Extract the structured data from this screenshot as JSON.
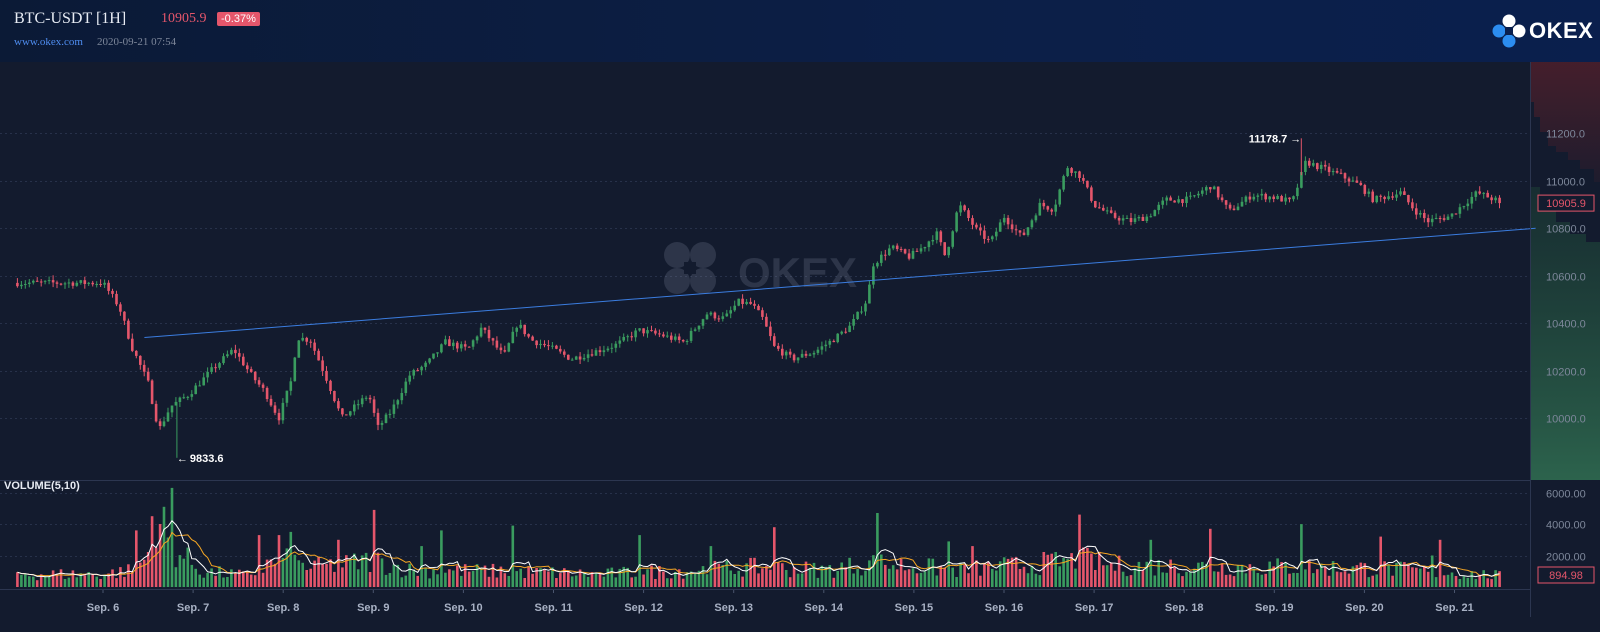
{
  "header": {
    "title": "BTC-USDT  [1H]",
    "last_price": "10905.9",
    "change": "-0.37%",
    "site": "www.okex.com",
    "timestamp": "2020-09-21 07:54",
    "logo_text": "OKEX"
  },
  "chart_data": [
    {
      "type": "candlestick",
      "title": "",
      "xlabel": "",
      "ylabel": "",
      "ylim": [
        9740,
        11500
      ],
      "yticks": [
        10000.0,
        10200.0,
        10400.0,
        10600.0,
        10800.0,
        11000.0,
        11200.0
      ],
      "ytick_labels": [
        "10000.0",
        "10200.0",
        "10400.0",
        "10600.0",
        "10800.0",
        "11000.0",
        "11200.0"
      ],
      "x_labels": [
        "Sep. 6",
        "Sep. 7",
        "Sep. 8",
        "Sep. 9",
        "Sep. 10",
        "Sep. 11",
        "Sep. 12",
        "Sep. 13",
        "Sep. 14",
        "Sep. 15",
        "Sep. 16",
        "Sep. 17",
        "Sep. 18",
        "Sep. 19",
        "Sep. 20",
        "Sep. 21"
      ],
      "price_path": [
        {
          "t": 0,
          "p": 10570
        },
        {
          "t": 0.18,
          "p": 10470
        },
        {
          "t": 0.32,
          "p": 10300
        },
        {
          "t": 0.5,
          "p": 10150
        },
        {
          "t": 0.62,
          "p": 9950
        },
        {
          "t": 0.75,
          "p": 10050
        },
        {
          "t": 0.95,
          "p": 10100
        },
        {
          "t": 1.25,
          "p": 10220
        },
        {
          "t": 1.45,
          "p": 10290
        },
        {
          "t": 1.65,
          "p": 10180
        },
        {
          "t": 1.8,
          "p": 10110
        },
        {
          "t": 1.95,
          "p": 10000
        },
        {
          "t": 2.1,
          "p": 10170
        },
        {
          "t": 2.15,
          "p": 10340
        },
        {
          "t": 2.3,
          "p": 10330
        },
        {
          "t": 2.5,
          "p": 10150
        },
        {
          "t": 2.65,
          "p": 10000
        },
        {
          "t": 2.8,
          "p": 10050
        },
        {
          "t": 2.95,
          "p": 10100
        },
        {
          "t": 3.05,
          "p": 9960
        },
        {
          "t": 3.2,
          "p": 10030
        },
        {
          "t": 3.4,
          "p": 10180
        },
        {
          "t": 3.6,
          "p": 10230
        },
        {
          "t": 3.8,
          "p": 10320
        },
        {
          "t": 4.05,
          "p": 10290
        },
        {
          "t": 4.2,
          "p": 10380
        },
        {
          "t": 4.45,
          "p": 10260
        },
        {
          "t": 4.6,
          "p": 10400
        },
        {
          "t": 4.75,
          "p": 10330
        },
        {
          "t": 4.95,
          "p": 10300
        },
        {
          "t": 5.2,
          "p": 10250
        },
        {
          "t": 5.45,
          "p": 10280
        },
        {
          "t": 5.7,
          "p": 10310
        },
        {
          "t": 5.95,
          "p": 10370
        },
        {
          "t": 6.2,
          "p": 10350
        },
        {
          "t": 6.45,
          "p": 10320
        },
        {
          "t": 6.7,
          "p": 10440
        },
        {
          "t": 6.9,
          "p": 10420
        },
        {
          "t": 7.05,
          "p": 10490
        },
        {
          "t": 7.2,
          "p": 10480
        },
        {
          "t": 7.32,
          "p": 10420
        },
        {
          "t": 7.45,
          "p": 10300
        },
        {
          "t": 7.65,
          "p": 10250
        },
        {
          "t": 7.9,
          "p": 10280
        },
        {
          "t": 8.1,
          "p": 10330
        },
        {
          "t": 8.3,
          "p": 10390
        },
        {
          "t": 8.48,
          "p": 10500
        },
        {
          "t": 8.55,
          "p": 10650
        },
        {
          "t": 8.75,
          "p": 10720
        },
        {
          "t": 8.95,
          "p": 10680
        },
        {
          "t": 9.1,
          "p": 10720
        },
        {
          "t": 9.25,
          "p": 10780
        },
        {
          "t": 9.35,
          "p": 10680
        },
        {
          "t": 9.5,
          "p": 10900
        },
        {
          "t": 9.7,
          "p": 10790
        },
        {
          "t": 9.85,
          "p": 10740
        },
        {
          "t": 10.0,
          "p": 10850
        },
        {
          "t": 10.2,
          "p": 10760
        },
        {
          "t": 10.4,
          "p": 10900
        },
        {
          "t": 10.55,
          "p": 10880
        },
        {
          "t": 10.7,
          "p": 11060
        },
        {
          "t": 10.85,
          "p": 11020
        },
        {
          "t": 11.0,
          "p": 10900
        },
        {
          "t": 11.2,
          "p": 10850
        },
        {
          "t": 11.4,
          "p": 10830
        },
        {
          "t": 11.6,
          "p": 10850
        },
        {
          "t": 11.8,
          "p": 10920
        },
        {
          "t": 12.05,
          "p": 10920
        },
        {
          "t": 12.3,
          "p": 10980
        },
        {
          "t": 12.5,
          "p": 10870
        },
        {
          "t": 12.75,
          "p": 10940
        },
        {
          "t": 13.0,
          "p": 10930
        },
        {
          "t": 13.2,
          "p": 10910
        },
        {
          "t": 13.35,
          "p": 11080
        },
        {
          "t": 13.55,
          "p": 11050
        },
        {
          "t": 13.75,
          "p": 11020
        },
        {
          "t": 13.95,
          "p": 10980
        },
        {
          "t": 14.1,
          "p": 10920
        },
        {
          "t": 14.4,
          "p": 10950
        },
        {
          "t": 14.55,
          "p": 10880
        },
        {
          "t": 14.7,
          "p": 10830
        },
        {
          "t": 14.95,
          "p": 10850
        },
        {
          "t": 15.1,
          "p": 10900
        },
        {
          "t": 15.25,
          "p": 10950
        },
        {
          "t": 15.45,
          "p": 10920
        },
        {
          "t": 15.5,
          "p": 10905.9
        }
      ],
      "candle_count": 375,
      "high_marker": {
        "label": "11178.7",
        "value": 11178.7,
        "t": 13.3
      },
      "low_marker": {
        "label": "9833.6",
        "value": 9833.6,
        "t": 0.82
      },
      "last_price_label": "10905.9",
      "trendline": {
        "start": {
          "t": 0.46,
          "p": 10340
        },
        "end": {
          "t": 15.9,
          "p": 10800
        }
      },
      "watermark": "OKEX",
      "up_color": "#3a9c5f",
      "down_color": "#e5566b",
      "line_color": "#3b7de0"
    },
    {
      "type": "bar",
      "title": "VOLUME(5,10)",
      "ylim": [
        0,
        6800
      ],
      "yticks": [
        2000.0,
        4000.0,
        6000.0
      ],
      "ytick_labels": [
        "2000.00",
        "4000.00",
        "6000.00"
      ],
      "last_value_label": "894.98",
      "volume_profile": [
        {
          "t": 0,
          "v": 900
        },
        {
          "t": 0.35,
          "v": 1200
        },
        {
          "t": 0.62,
          "v": 3200
        },
        {
          "t": 0.8,
          "v": 2600
        },
        {
          "t": 1.1,
          "v": 1100
        },
        {
          "t": 1.6,
          "v": 800
        },
        {
          "t": 1.95,
          "v": 2000
        },
        {
          "t": 2.3,
          "v": 1400
        },
        {
          "t": 2.7,
          "v": 1600
        },
        {
          "t": 3.0,
          "v": 1900
        },
        {
          "t": 3.4,
          "v": 1200
        },
        {
          "t": 4.5,
          "v": 1100
        },
        {
          "t": 5.5,
          "v": 900
        },
        {
          "t": 7.3,
          "v": 1400
        },
        {
          "t": 8.0,
          "v": 1200
        },
        {
          "t": 8.55,
          "v": 1700
        },
        {
          "t": 9.5,
          "v": 1200
        },
        {
          "t": 10.9,
          "v": 1900
        },
        {
          "t": 11.2,
          "v": 1500
        },
        {
          "t": 13.3,
          "v": 1400
        },
        {
          "t": 14.2,
          "v": 1300
        },
        {
          "t": 15.5,
          "v": 800
        }
      ],
      "spikes": [
        {
          "t": 0.75,
          "v": 6300
        },
        {
          "t": 0.68,
          "v": 5100
        },
        {
          "t": 0.55,
          "v": 4500
        },
        {
          "t": 0.35,
          "v": 3600
        },
        {
          "t": 1.75,
          "v": 3300
        },
        {
          "t": 1.95,
          "v": 3300
        },
        {
          "t": 2.1,
          "v": 3500
        },
        {
          "t": 2.6,
          "v": 3000
        },
        {
          "t": 3.0,
          "v": 4900
        },
        {
          "t": 3.55,
          "v": 2600
        },
        {
          "t": 3.75,
          "v": 3600
        },
        {
          "t": 4.55,
          "v": 3900
        },
        {
          "t": 5.95,
          "v": 3300
        },
        {
          "t": 6.75,
          "v": 2600
        },
        {
          "t": 7.45,
          "v": 3800
        },
        {
          "t": 8.6,
          "v": 4700
        },
        {
          "t": 9.4,
          "v": 2900
        },
        {
          "t": 9.65,
          "v": 2600
        },
        {
          "t": 10.85,
          "v": 4600
        },
        {
          "t": 11.65,
          "v": 3000
        },
        {
          "t": 12.3,
          "v": 3700
        },
        {
          "t": 13.3,
          "v": 4000
        },
        {
          "t": 14.2,
          "v": 3200
        },
        {
          "t": 14.75,
          "v": 2000
        },
        {
          "t": 14.85,
          "v": 3000
        }
      ],
      "ma5_color": "#ffffff",
      "ma10_color": "#f5a623"
    }
  ]
}
